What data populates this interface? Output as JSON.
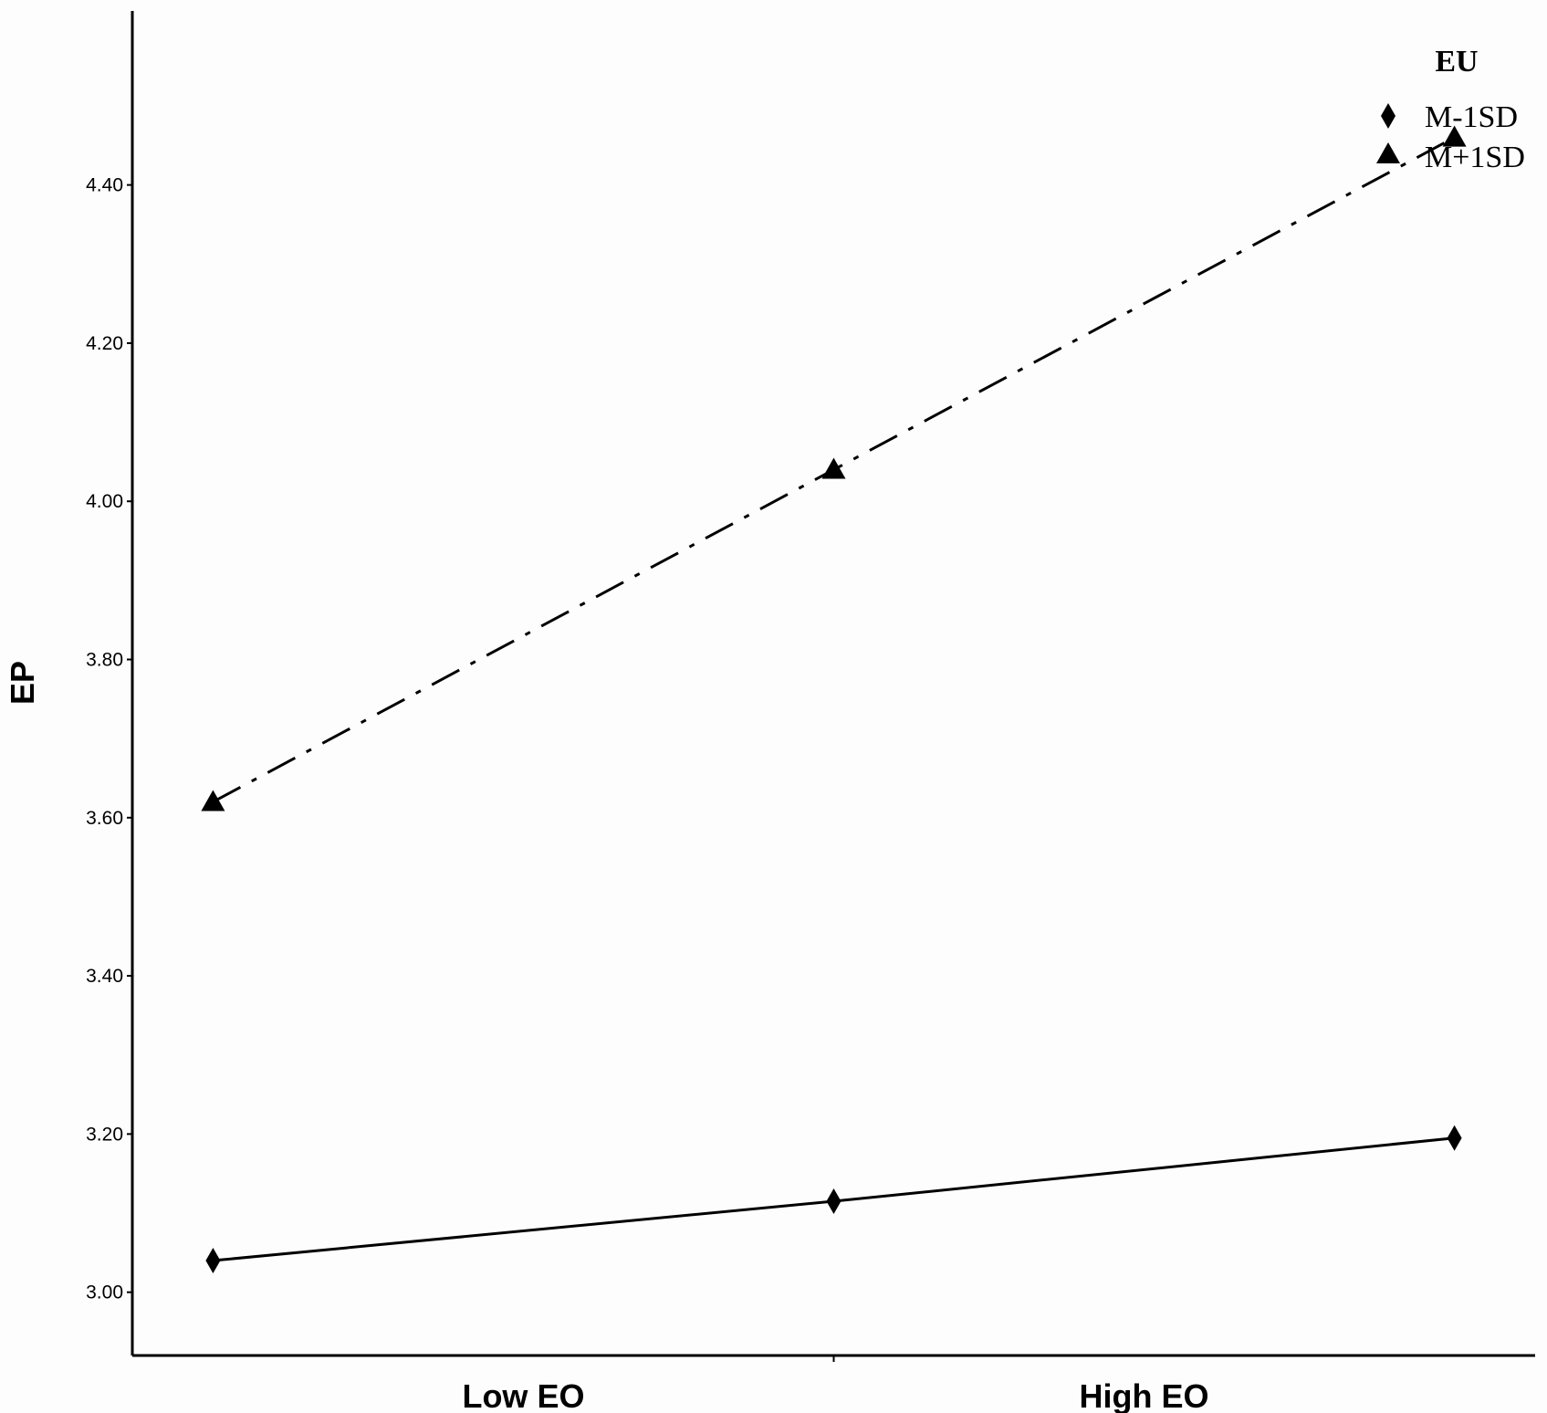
{
  "chart_data": {
    "type": "line",
    "title": "",
    "ylabel": "EP",
    "xlabel": "",
    "ylim": [
      2.92,
      4.62
    ],
    "yticks": [
      "3.00",
      "3.20",
      "3.40",
      "3.60",
      "3.80",
      "4.00",
      "4.20",
      "4.40"
    ],
    "x": [
      0,
      1,
      2
    ],
    "xlim": [
      -0.13,
      2.13
    ],
    "x_category_labels": [
      "Low  EO",
      "High EO"
    ],
    "legend": {
      "title": "EU",
      "position": "top-right"
    },
    "series": [
      {
        "name": "M-1SD",
        "marker": "diamond",
        "line_style": "solid",
        "color": "#000000",
        "values": [
          3.04,
          3.115,
          3.195
        ]
      },
      {
        "name": "M+1SD",
        "marker": "triangle",
        "line_style": "dash-dot",
        "color": "#000000",
        "values": [
          3.62,
          4.04,
          4.46
        ]
      }
    ]
  }
}
